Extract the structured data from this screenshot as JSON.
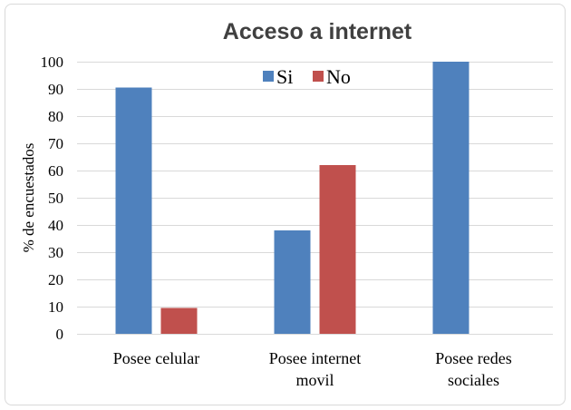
{
  "chart_data": {
    "type": "bar",
    "title": "Acceso a internet",
    "ylabel": "% de encuestados",
    "xlabel": "",
    "ylim": [
      0,
      100
    ],
    "yticks": [
      0,
      10,
      20,
      30,
      40,
      50,
      60,
      70,
      80,
      90,
      100
    ],
    "grid": true,
    "legend_position": "top-center",
    "categories": [
      [
        "Posee celular"
      ],
      [
        "Posee internet",
        "movil"
      ],
      [
        "Posee redes",
        "sociales"
      ]
    ],
    "series": [
      {
        "name": "Si",
        "color": "#4f81bd",
        "values": [
          90.5,
          38,
          100
        ]
      },
      {
        "name": "No",
        "color": "#c0504d",
        "values": [
          9.5,
          62,
          0
        ]
      }
    ]
  }
}
